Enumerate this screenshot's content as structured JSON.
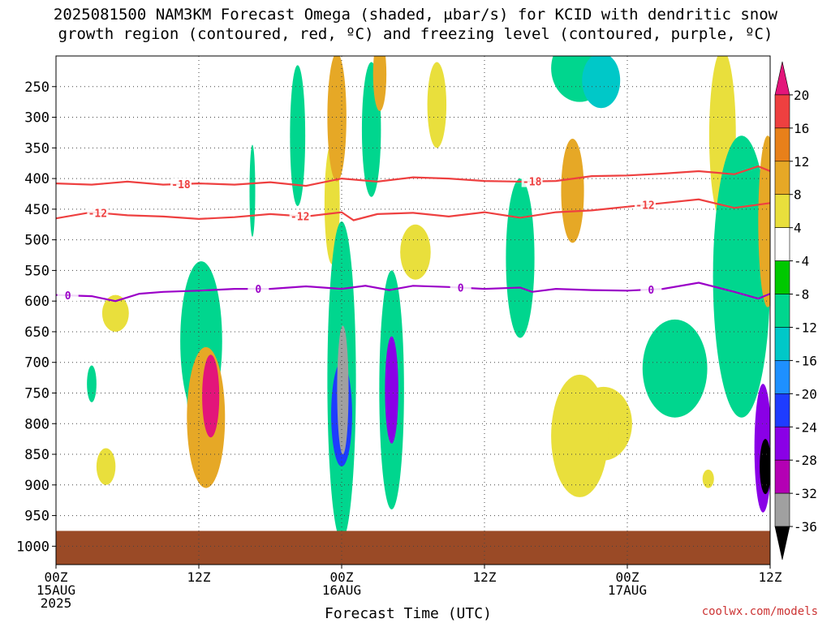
{
  "title_line1": "2025081500 NAM3KM Forecast Omega (shaded, μbar/s) for KCID with dendritic snow",
  "title_line2": "growth region (contoured, red, ºC) and freezing level (contoured, purple, ºC)",
  "credit": "coolwx.com/models",
  "chart_data": {
    "type": "heatmap",
    "title": "2025081500 NAM3KM Forecast Omega (shaded, μbar/s) for KCID with dendritic snow growth region (contoured, red, ºC) and freezing level (contoured, purple, ºC)",
    "xlabel": "Forecast Time (UTC)",
    "ylabel": "",
    "x_ticks": [
      {
        "hour": 0,
        "lines": [
          "00Z",
          "15AUG",
          "2025"
        ]
      },
      {
        "hour": 12,
        "lines": [
          "12Z"
        ]
      },
      {
        "hour": 24,
        "lines": [
          "00Z",
          "16AUG"
        ]
      },
      {
        "hour": 36,
        "lines": [
          "12Z"
        ]
      },
      {
        "hour": 48,
        "lines": [
          "00Z",
          "17AUG"
        ]
      },
      {
        "hour": 60,
        "lines": [
          "12Z"
        ]
      }
    ],
    "xlim": [
      0,
      60
    ],
    "y_ticks": [
      250,
      300,
      350,
      400,
      450,
      500,
      550,
      600,
      650,
      700,
      750,
      800,
      850,
      900,
      950,
      1000
    ],
    "ylim_hpa": [
      200,
      1030
    ],
    "grid": "dotted",
    "ground_pressure_hpa": 975,
    "colorbar": {
      "labels": [
        20,
        16,
        12,
        8,
        4,
        -4,
        -8,
        -12,
        -16,
        -20,
        -24,
        -28,
        -32,
        -36
      ],
      "colors": [
        "#e3157a",
        "#ee4040",
        "#e8801a",
        "#e6a826",
        "#e9df3c",
        "#ffffff",
        "#00c800",
        "#00d68e",
        "#00c8c8",
        "#1e90ff",
        "#1e3cff",
        "#8a00e6",
        "#b400b4",
        "#a0a0a0",
        "#000000"
      ]
    },
    "contours": [
      {
        "label": "-18",
        "color": "#ee4040",
        "points": [
          [
            0,
            408
          ],
          [
            3,
            410
          ],
          [
            6,
            405
          ],
          [
            9,
            410
          ],
          [
            12,
            408
          ],
          [
            15,
            410
          ],
          [
            18,
            406
          ],
          [
            21,
            412
          ],
          [
            24,
            400
          ],
          [
            27,
            405
          ],
          [
            30,
            398
          ],
          [
            33,
            400
          ],
          [
            36,
            404
          ],
          [
            39,
            405
          ],
          [
            42,
            404
          ],
          [
            45,
            396
          ],
          [
            48,
            395
          ],
          [
            51,
            392
          ],
          [
            54,
            388
          ],
          [
            57,
            393
          ],
          [
            59,
            380
          ],
          [
            60,
            388
          ]
        ],
        "label_hours": [
          10.5,
          40
        ]
      },
      {
        "label": "-12",
        "color": "#ee4040",
        "points": [
          [
            0,
            465
          ],
          [
            3,
            455
          ],
          [
            6,
            460
          ],
          [
            9,
            462
          ],
          [
            12,
            466
          ],
          [
            15,
            463
          ],
          [
            18,
            458
          ],
          [
            21,
            462
          ],
          [
            24,
            455
          ],
          [
            25,
            468
          ],
          [
            27,
            458
          ],
          [
            30,
            456
          ],
          [
            33,
            462
          ],
          [
            36,
            455
          ],
          [
            39,
            464
          ],
          [
            42,
            455
          ],
          [
            45,
            452
          ],
          [
            48,
            446
          ],
          [
            51,
            440
          ],
          [
            54,
            434
          ],
          [
            57,
            448
          ],
          [
            60,
            440
          ]
        ],
        "label_hours": [
          3.5,
          20.5,
          49.5
        ]
      },
      {
        "label": "0",
        "color": "#9b00c8",
        "points": [
          [
            0,
            590
          ],
          [
            3,
            592
          ],
          [
            5,
            600
          ],
          [
            7,
            588
          ],
          [
            9,
            585
          ],
          [
            12,
            583
          ],
          [
            15,
            580
          ],
          [
            18,
            580
          ],
          [
            21,
            576
          ],
          [
            24,
            580
          ],
          [
            26,
            575
          ],
          [
            28,
            582
          ],
          [
            30,
            575
          ],
          [
            33,
            577
          ],
          [
            36,
            580
          ],
          [
            39,
            578
          ],
          [
            40,
            585
          ],
          [
            42,
            580
          ],
          [
            45,
            582
          ],
          [
            48,
            583
          ],
          [
            51,
            580
          ],
          [
            54,
            570
          ],
          [
            57,
            585
          ],
          [
            59,
            596
          ],
          [
            60,
            588
          ]
        ],
        "label_hours": [
          1,
          17,
          34,
          50
        ]
      }
    ],
    "omega_cells": [
      {
        "h": 13.0,
        "p": 755,
        "wh": 0.9,
        "wp": 135,
        "v": 20
      },
      {
        "h": 12.4,
        "p": 740,
        "wh": 1.8,
        "wp": 190,
        "v": -8
      },
      {
        "h": 12.2,
        "p": 665,
        "wh": 2.2,
        "wp": 260,
        "v": -8
      },
      {
        "h": 12.6,
        "p": 790,
        "wh": 2.0,
        "wp": 230,
        "v": 8
      },
      {
        "h": 24.1,
        "p": 745,
        "wh": 0.6,
        "wp": 210,
        "v": -32
      },
      {
        "h": 24.0,
        "p": 730,
        "wh": 1.5,
        "wp": 520,
        "v": -8
      },
      {
        "h": 24.0,
        "p": 785,
        "wh": 1.1,
        "wp": 170,
        "v": -20
      },
      {
        "h": 28.2,
        "p": 745,
        "wh": 0.7,
        "wp": 175,
        "v": -24
      },
      {
        "h": 28.2,
        "p": 745,
        "wh": 1.3,
        "wp": 390,
        "v": -8
      },
      {
        "h": 23.6,
        "p": 300,
        "wh": 1.0,
        "wp": 210,
        "v": 8
      },
      {
        "h": 23.2,
        "p": 440,
        "wh": 0.8,
        "wp": 200,
        "v": 4
      },
      {
        "h": 20.3,
        "p": 330,
        "wh": 0.8,
        "wp": 230,
        "v": -8
      },
      {
        "h": 26.5,
        "p": 320,
        "wh": 1.0,
        "wp": 220,
        "v": -8
      },
      {
        "h": 27.2,
        "p": 230,
        "wh": 0.7,
        "wp": 120,
        "v": 8
      },
      {
        "h": 46.0,
        "p": 800,
        "wh": 3.0,
        "wp": 120,
        "v": 4
      },
      {
        "h": 44.0,
        "p": 820,
        "wh": 3.0,
        "wp": 200,
        "v": 4
      },
      {
        "h": 39.0,
        "p": 530,
        "wh": 1.5,
        "wp": 260,
        "v": -8
      },
      {
        "h": 43.4,
        "p": 420,
        "wh": 1.2,
        "wp": 170,
        "v": 8
      },
      {
        "h": 44.0,
        "p": 220,
        "wh": 3.0,
        "wp": 110,
        "v": -8
      },
      {
        "h": 45.8,
        "p": 240,
        "wh": 2.0,
        "wp": 90,
        "v": -12
      },
      {
        "h": 57.6,
        "p": 560,
        "wh": 3.0,
        "wp": 460,
        "v": -8
      },
      {
        "h": 59.4,
        "p": 840,
        "wh": 0.9,
        "wp": 210,
        "v": -24
      },
      {
        "h": 59.6,
        "p": 870,
        "wh": 0.6,
        "wp": 90,
        "v": -36
      },
      {
        "h": 59.8,
        "p": 470,
        "wh": 1.0,
        "wp": 280,
        "v": 8
      },
      {
        "h": 56.0,
        "p": 330,
        "wh": 1.4,
        "wp": 280,
        "v": 4
      },
      {
        "h": 16.5,
        "p": 420,
        "wh": 0.3,
        "wp": 150,
        "v": -8
      },
      {
        "h": 5.0,
        "p": 620,
        "wh": 1.4,
        "wp": 60,
        "v": 4
      },
      {
        "h": 4.2,
        "p": 870,
        "wh": 1.0,
        "wp": 60,
        "v": 4
      },
      {
        "h": 3.0,
        "p": 735,
        "wh": 0.5,
        "wp": 60,
        "v": -8
      },
      {
        "h": 52.0,
        "p": 710,
        "wh": 3.4,
        "wp": 160,
        "v": -8
      },
      {
        "h": 54.8,
        "p": 890,
        "wh": 0.6,
        "wp": 30,
        "v": 4
      },
      {
        "h": 30.2,
        "p": 520,
        "wh": 1.6,
        "wp": 90,
        "v": 4
      },
      {
        "h": 32.0,
        "p": 280,
        "wh": 1.0,
        "wp": 140,
        "v": 4
      }
    ]
  }
}
